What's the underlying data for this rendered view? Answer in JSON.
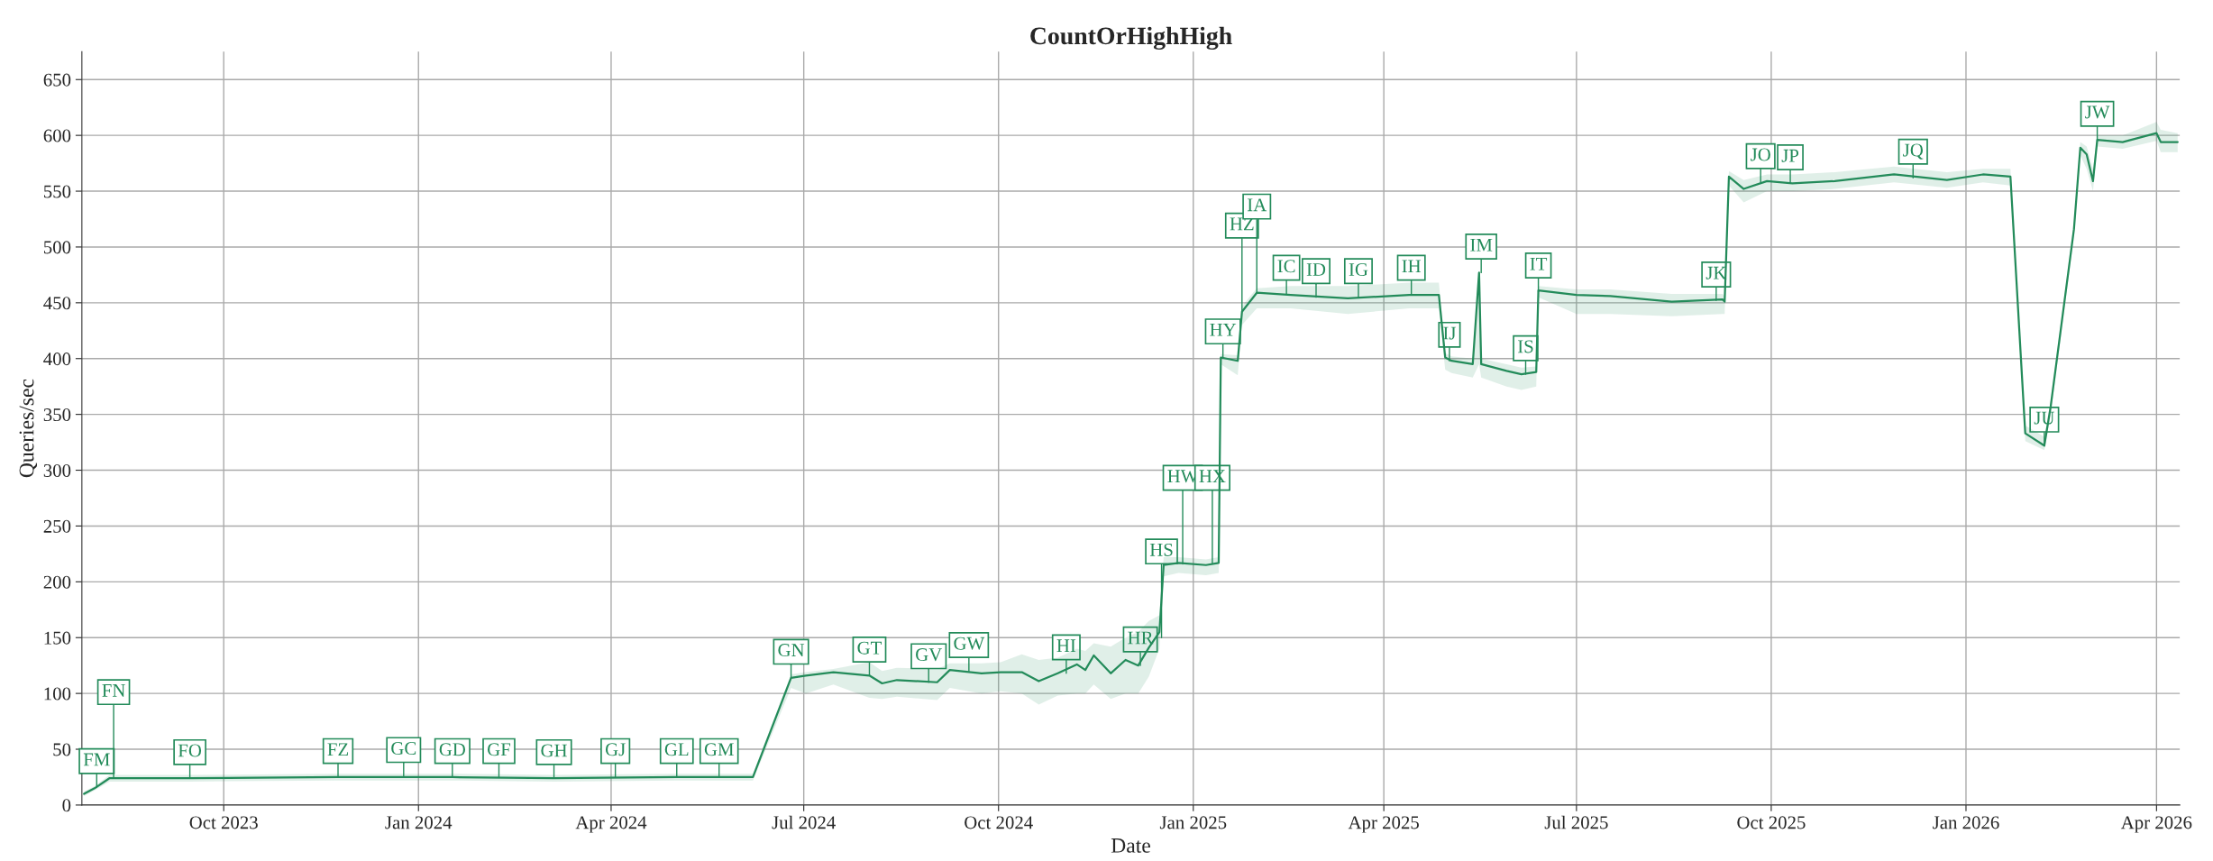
{
  "chart_data": {
    "type": "line",
    "title": "CountOrHighHigh",
    "xlabel": "Date",
    "ylabel": "Queries/sec",
    "xlim": [
      "2023-07-26",
      "2026-04-12"
    ],
    "xticks": [
      {
        "value": "2023-10-01",
        "label": "Oct 2023"
      },
      {
        "value": "2024-01-01",
        "label": "Jan 2024"
      },
      {
        "value": "2024-04-01",
        "label": "Apr 2024"
      },
      {
        "value": "2024-07-01",
        "label": "Jul 2024"
      },
      {
        "value": "2024-10-01",
        "label": "Oct 2024"
      },
      {
        "value": "2025-01-01",
        "label": "Jan 2025"
      },
      {
        "value": "2025-04-01",
        "label": "Apr 2025"
      },
      {
        "value": "2025-07-01",
        "label": "Jul 2025"
      },
      {
        "value": "2025-10-01",
        "label": "Oct 2025"
      },
      {
        "value": "2026-01-01",
        "label": "Jan 2026"
      },
      {
        "value": "2026-04-01",
        "label": "Apr 2026"
      }
    ],
    "ylim": [
      0,
      675
    ],
    "yticks": [
      0,
      50,
      100,
      150,
      200,
      250,
      300,
      350,
      400,
      450,
      500,
      550,
      600,
      650
    ],
    "grid": true,
    "marker": "none",
    "line_style": "solid",
    "series": [
      {
        "color": "#238b5a",
        "x": [
          "2023-07-27",
          "2023-08-01",
          "2023-08-08",
          "2023-09-15",
          "2023-11-24",
          "2024-01-17",
          "2024-03-05",
          "2024-05-02",
          "2024-06-07",
          "2024-06-25",
          "2024-07-02",
          "2024-07-15",
          "2024-08-01",
          "2024-08-07",
          "2024-08-14",
          "2024-09-02",
          "2024-09-08",
          "2024-09-23",
          "2024-10-02",
          "2024-10-12",
          "2024-10-20",
          "2024-10-29",
          "2024-11-07",
          "2024-11-11",
          "2024-11-15",
          "2024-11-23",
          "2024-11-30",
          "2024-12-06",
          "2024-12-11",
          "2024-12-16",
          "2024-12-18",
          "2024-12-25",
          "2025-01-07",
          "2025-01-13",
          "2025-01-14",
          "2025-01-22",
          "2025-01-24",
          "2025-01-31",
          "2025-02-16",
          "2025-03-15",
          "2025-04-13",
          "2025-04-27",
          "2025-04-30",
          "2025-05-03",
          "2025-05-13",
          "2025-05-16",
          "2025-05-17",
          "2025-05-29",
          "2025-06-05",
          "2025-06-12",
          "2025-06-13",
          "2025-07-01",
          "2025-07-17",
          "2025-08-15",
          "2025-09-08",
          "2025-09-09",
          "2025-09-11",
          "2025-09-18",
          "2025-09-29",
          "2025-10-11",
          "2025-10-31",
          "2025-11-28",
          "2025-12-23",
          "2026-01-09",
          "2026-01-22",
          "2026-01-29",
          "2026-02-07",
          "2026-02-10",
          "2026-02-21",
          "2026-02-24",
          "2026-02-27",
          "2026-03-02",
          "2026-03-04",
          "2026-03-16",
          "2026-04-01",
          "2026-04-03",
          "2026-04-11"
        ],
        "values": [
          10,
          15,
          24,
          24,
          25,
          25,
          24,
          25,
          25,
          114,
          116,
          119,
          116,
          109,
          112,
          110,
          121,
          118,
          119,
          119,
          111,
          118,
          126,
          121,
          134,
          118,
          130,
          125,
          141,
          155,
          215,
          217,
          215,
          217,
          401,
          398,
          442,
          459,
          457,
          454,
          457,
          457,
          401,
          398,
          395,
          477,
          395,
          389,
          386,
          388,
          461,
          457,
          456,
          451,
          453,
          451,
          563,
          552,
          559,
          557,
          559,
          565,
          560,
          565,
          563,
          333,
          322,
          357,
          516,
          589,
          583,
          559,
          596,
          594,
          602,
          594,
          594
        ],
        "lower": [
          8,
          13,
          21,
          21,
          22,
          22,
          21,
          22,
          22,
          105,
          100,
          108,
          96,
          95,
          97,
          94,
          105,
          100,
          102,
          100,
          90,
          98,
          100,
          100,
          108,
          95,
          100,
          100,
          115,
          140,
          205,
          208,
          206,
          208,
          395,
          385,
          430,
          445,
          445,
          440,
          445,
          445,
          390,
          387,
          383,
          395,
          383,
          375,
          372,
          375,
          455,
          440,
          440,
          438,
          440,
          440,
          555,
          540,
          550,
          550,
          552,
          558,
          553,
          558,
          555,
          326,
          318,
          350,
          510,
          582,
          570,
          550,
          590,
          588,
          595,
          585,
          585
        ],
        "upper": [
          12,
          17,
          27,
          27,
          28,
          28,
          27,
          28,
          28,
          117,
          119,
          122,
          128,
          120,
          123,
          122,
          127,
          127,
          128,
          135,
          130,
          132,
          140,
          138,
          145,
          142,
          150,
          155,
          165,
          170,
          222,
          222,
          220,
          222,
          404,
          403,
          447,
          463,
          465,
          465,
          468,
          468,
          405,
          402,
          400,
          477,
          400,
          395,
          392,
          393,
          465,
          462,
          462,
          458,
          458,
          456,
          568,
          560,
          565,
          565,
          567,
          572,
          567,
          570,
          570,
          340,
          330,
          362,
          522,
          594,
          590,
          570,
          600,
          600,
          612,
          605,
          602
        ]
      }
    ],
    "annotations": [
      {
        "text": "FM",
        "x": "2023-08-02",
        "y": 16
      },
      {
        "text": "FN",
        "x": "2023-08-10",
        "y": 24
      },
      {
        "text": "FO",
        "x": "2023-09-15",
        "y": 24
      },
      {
        "text": "FZ",
        "x": "2023-11-24",
        "y": 25
      },
      {
        "text": "GC",
        "x": "2023-12-25",
        "y": 26
      },
      {
        "text": "GD",
        "x": "2024-01-17",
        "y": 25
      },
      {
        "text": "GF",
        "x": "2024-02-08",
        "y": 25
      },
      {
        "text": "GH",
        "x": "2024-03-05",
        "y": 24
      },
      {
        "text": "GJ",
        "x": "2024-04-03",
        "y": 25
      },
      {
        "text": "GL",
        "x": "2024-05-02",
        "y": 25
      },
      {
        "text": "GM",
        "x": "2024-05-22",
        "y": 25
      },
      {
        "text": "GN",
        "x": "2024-06-25",
        "y": 114
      },
      {
        "text": "GT",
        "x": "2024-08-01",
        "y": 116
      },
      {
        "text": "GV",
        "x": "2024-08-29",
        "y": 110
      },
      {
        "text": "GW",
        "x": "2024-09-17",
        "y": 120
      },
      {
        "text": "HI",
        "x": "2024-11-02",
        "y": 118
      },
      {
        "text": "HR",
        "x": "2024-12-07",
        "y": 125
      },
      {
        "text": "HS",
        "x": "2024-12-17",
        "y": 150
      },
      {
        "text": "HW",
        "x": "2024-12-27",
        "y": 216
      },
      {
        "text": "HX",
        "x": "2025-01-10",
        "y": 216
      },
      {
        "text": "HY",
        "x": "2025-01-15",
        "y": 401
      },
      {
        "text": "HZ",
        "x": "2025-01-24",
        "y": 442
      },
      {
        "text": "IA",
        "x": "2025-01-31",
        "y": 459
      },
      {
        "text": "IC",
        "x": "2025-02-14",
        "y": 458
      },
      {
        "text": "ID",
        "x": "2025-02-28",
        "y": 455
      },
      {
        "text": "IG",
        "x": "2025-03-20",
        "y": 455
      },
      {
        "text": "IH",
        "x": "2025-04-14",
        "y": 458
      },
      {
        "text": "IJ",
        "x": "2025-05-02",
        "y": 398
      },
      {
        "text": "IM",
        "x": "2025-05-17",
        "y": 477
      },
      {
        "text": "IS",
        "x": "2025-06-07",
        "y": 386
      },
      {
        "text": "IT",
        "x": "2025-06-13",
        "y": 460
      },
      {
        "text": "JK",
        "x": "2025-09-05",
        "y": 452
      },
      {
        "text": "JO",
        "x": "2025-09-26",
        "y": 558
      },
      {
        "text": "JP",
        "x": "2025-10-10",
        "y": 557
      },
      {
        "text": "JQ",
        "x": "2025-12-07",
        "y": 562
      },
      {
        "text": "JU",
        "x": "2026-02-07",
        "y": 322
      },
      {
        "text": "JW",
        "x": "2026-03-04",
        "y": 596
      }
    ]
  }
}
